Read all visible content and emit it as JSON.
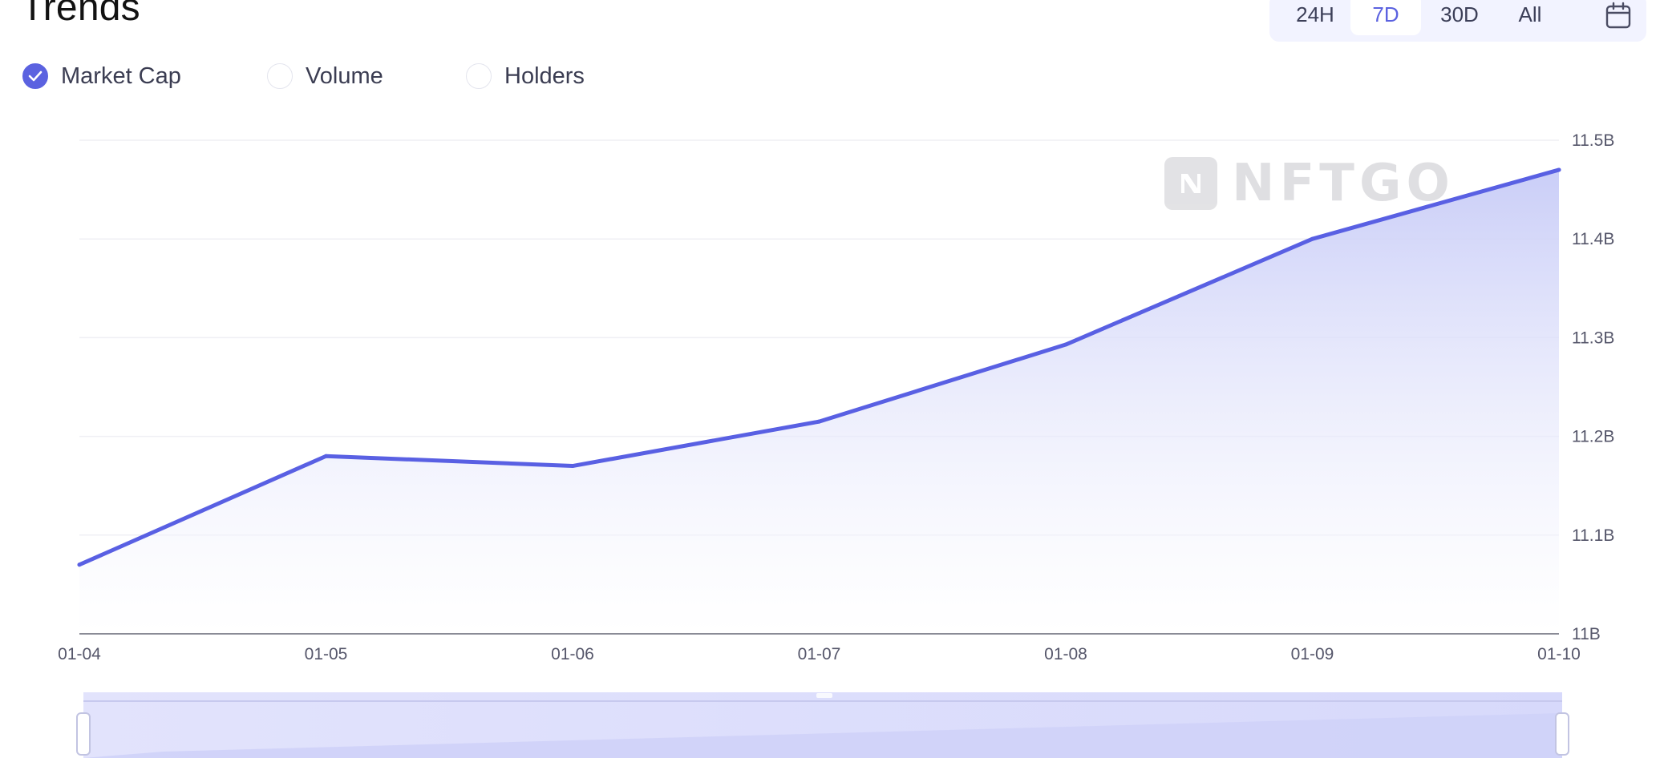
{
  "header": {
    "title": "Trends"
  },
  "range": {
    "options": [
      "24H",
      "7D",
      "30D",
      "All"
    ],
    "selected": "7D",
    "calendar_icon": "calendar-icon"
  },
  "metrics": [
    {
      "label": "Market Cap",
      "checked": true
    },
    {
      "label": "Volume",
      "checked": false
    },
    {
      "label": "Holders",
      "checked": false
    }
  ],
  "watermark": "NFTGO",
  "colors": {
    "accent": "#5b62e0",
    "line": "#5960e3",
    "area_top": "#c9ccf6",
    "slider": "#dcdefb"
  },
  "chart_data": {
    "type": "area",
    "x": [
      "01-04",
      "01-05",
      "01-06",
      "01-07",
      "01-08",
      "01-09",
      "01-10"
    ],
    "series": [
      {
        "name": "Market Cap",
        "values": [
          11.07,
          11.18,
          11.17,
          11.215,
          11.293,
          11.4,
          11.47
        ]
      }
    ],
    "y_ticks": [
      "11B",
      "11.1B",
      "11.2B",
      "11.3B",
      "11.4B",
      "11.5B"
    ],
    "ylim": [
      11.0,
      11.5
    ],
    "y_axis_position": "right",
    "grid": true,
    "title": "",
    "xlabel": "",
    "ylabel": ""
  }
}
